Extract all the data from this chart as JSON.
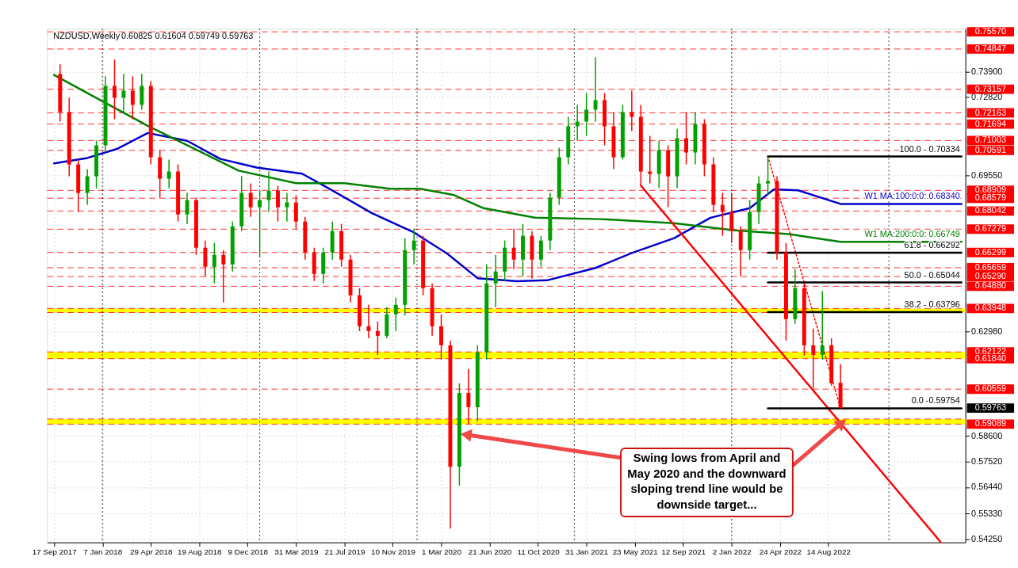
{
  "chart_data": {
    "type": "candlestick",
    "title": "NZDUSD,Weekly",
    "subtitle": "0.60825 0.61604 0.59749 0.59763",
    "x": [
      "2017-10-01",
      "2017-10-22",
      "2017-11-12",
      "2017-12-03",
      "2017-12-24",
      "2018-01-14",
      "2018-02-04",
      "2018-02-25",
      "2018-03-18",
      "2018-04-08",
      "2018-04-29",
      "2018-05-20",
      "2018-06-10",
      "2018-07-01",
      "2018-07-22",
      "2018-08-12",
      "2018-09-02",
      "2018-09-23",
      "2018-10-14",
      "2018-11-04",
      "2018-11-25",
      "2018-12-16",
      "2019-01-06",
      "2019-01-27",
      "2019-02-17",
      "2019-03-10",
      "2019-03-31",
      "2019-04-21",
      "2019-05-12",
      "2019-06-02",
      "2019-06-23",
      "2019-07-14",
      "2019-08-04",
      "2019-08-25",
      "2019-09-15",
      "2019-10-06",
      "2019-10-27",
      "2019-11-17",
      "2019-12-08",
      "2019-12-29",
      "2020-01-19",
      "2020-02-09",
      "2020-03-01",
      "2020-03-22",
      "2020-04-12",
      "2020-05-03",
      "2020-05-24",
      "2020-06-14",
      "2020-07-05",
      "2020-07-26",
      "2020-08-16",
      "2020-09-06",
      "2020-09-27",
      "2020-10-18",
      "2020-11-08",
      "2020-11-29",
      "2020-12-20",
      "2021-01-10",
      "2021-01-31",
      "2021-02-21",
      "2021-03-14",
      "2021-04-04",
      "2021-04-25",
      "2021-05-16",
      "2021-06-06",
      "2021-06-27",
      "2021-07-18",
      "2021-08-08",
      "2021-08-29",
      "2021-09-19",
      "2021-10-10",
      "2021-10-31",
      "2021-11-21",
      "2021-12-12",
      "2022-01-02",
      "2022-01-23",
      "2022-02-13",
      "2022-03-06",
      "2022-03-27",
      "2022-04-17",
      "2022-05-08",
      "2022-05-29",
      "2022-06-19",
      "2022-07-10",
      "2022-07-31",
      "2022-08-21",
      "2022-09-11"
    ],
    "ohlc": [
      [
        0.738,
        0.742,
        0.718,
        0.722
      ],
      [
        0.722,
        0.728,
        0.695,
        0.7
      ],
      [
        0.7,
        0.702,
        0.68,
        0.688
      ],
      [
        0.688,
        0.698,
        0.683,
        0.695
      ],
      [
        0.695,
        0.71,
        0.69,
        0.708
      ],
      [
        0.708,
        0.737,
        0.705,
        0.733
      ],
      [
        0.733,
        0.744,
        0.719,
        0.728
      ],
      [
        0.728,
        0.738,
        0.722,
        0.731
      ],
      [
        0.731,
        0.737,
        0.719,
        0.725
      ],
      [
        0.725,
        0.738,
        0.723,
        0.733
      ],
      [
        0.733,
        0.735,
        0.7,
        0.703
      ],
      [
        0.703,
        0.706,
        0.686,
        0.694
      ],
      [
        0.694,
        0.702,
        0.69,
        0.697
      ],
      [
        0.697,
        0.7,
        0.676,
        0.679
      ],
      [
        0.679,
        0.688,
        0.675,
        0.685
      ],
      [
        0.685,
        0.686,
        0.662,
        0.665
      ],
      [
        0.665,
        0.668,
        0.653,
        0.657
      ],
      [
        0.657,
        0.667,
        0.65,
        0.662
      ],
      [
        0.662,
        0.664,
        0.642,
        0.658
      ],
      [
        0.658,
        0.676,
        0.655,
        0.674
      ],
      [
        0.674,
        0.695,
        0.672,
        0.688
      ],
      [
        0.688,
        0.692,
        0.678,
        0.682
      ],
      [
        0.682,
        0.689,
        0.661,
        0.685
      ],
      [
        0.685,
        0.697,
        0.68,
        0.689
      ],
      [
        0.689,
        0.691,
        0.676,
        0.682
      ],
      [
        0.682,
        0.688,
        0.676,
        0.684
      ],
      [
        0.684,
        0.687,
        0.673,
        0.676
      ],
      [
        0.676,
        0.678,
        0.66,
        0.663
      ],
      [
        0.663,
        0.665,
        0.651,
        0.654
      ],
      [
        0.654,
        0.665,
        0.65,
        0.663
      ],
      [
        0.663,
        0.676,
        0.66,
        0.672
      ],
      [
        0.672,
        0.675,
        0.657,
        0.66
      ],
      [
        0.66,
        0.662,
        0.642,
        0.645
      ],
      [
        0.645,
        0.648,
        0.63,
        0.632
      ],
      [
        0.632,
        0.641,
        0.627,
        0.63
      ],
      [
        0.63,
        0.634,
        0.62,
        0.628
      ],
      [
        0.628,
        0.64,
        0.627,
        0.637
      ],
      [
        0.637,
        0.644,
        0.63,
        0.641
      ],
      [
        0.641,
        0.669,
        0.6365,
        0.664
      ],
      [
        0.664,
        0.673,
        0.658,
        0.668
      ],
      [
        0.668,
        0.67,
        0.645,
        0.648
      ],
      [
        0.648,
        0.65,
        0.628,
        0.632
      ],
      [
        0.632,
        0.637,
        0.618,
        0.624
      ],
      [
        0.624,
        0.626,
        0.547,
        0.573
      ],
      [
        0.573,
        0.608,
        0.565,
        0.604
      ],
      [
        0.604,
        0.614,
        0.591,
        0.598
      ],
      [
        0.598,
        0.624,
        0.592,
        0.621
      ],
      [
        0.621,
        0.658,
        0.618,
        0.65
      ],
      [
        0.65,
        0.662,
        0.64,
        0.655
      ],
      [
        0.655,
        0.668,
        0.651,
        0.665
      ],
      [
        0.665,
        0.673,
        0.656,
        0.66
      ],
      [
        0.66,
        0.675,
        0.653,
        0.67
      ],
      [
        0.67,
        0.672,
        0.652,
        0.66
      ],
      [
        0.66,
        0.67,
        0.657,
        0.668
      ],
      [
        0.668,
        0.688,
        0.664,
        0.686
      ],
      [
        0.686,
        0.707,
        0.683,
        0.703
      ],
      [
        0.703,
        0.72,
        0.7,
        0.716
      ],
      [
        0.716,
        0.725,
        0.71,
        0.718
      ],
      [
        0.718,
        0.73,
        0.712,
        0.723
      ],
      [
        0.723,
        0.745,
        0.718,
        0.727
      ],
      [
        0.727,
        0.73,
        0.708,
        0.716
      ],
      [
        0.716,
        0.722,
        0.698,
        0.703
      ],
      [
        0.703,
        0.725,
        0.702,
        0.722
      ],
      [
        0.722,
        0.731,
        0.714,
        0.72
      ],
      [
        0.72,
        0.725,
        0.691,
        0.697
      ],
      [
        0.697,
        0.712,
        0.692,
        0.696
      ],
      [
        0.696,
        0.71,
        0.69,
        0.706
      ],
      [
        0.706,
        0.708,
        0.682,
        0.695
      ],
      [
        0.695,
        0.715,
        0.69,
        0.711
      ],
      [
        0.711,
        0.722,
        0.7,
        0.705
      ],
      [
        0.705,
        0.722,
        0.7,
        0.717
      ],
      [
        0.717,
        0.719,
        0.695,
        0.7
      ],
      [
        0.7,
        0.703,
        0.68,
        0.683
      ],
      [
        0.683,
        0.688,
        0.67,
        0.68
      ],
      [
        0.68,
        0.688,
        0.667,
        0.672
      ],
      [
        0.672,
        0.674,
        0.653,
        0.664
      ],
      [
        0.664,
        0.685,
        0.66,
        0.68
      ],
      [
        0.68,
        0.695,
        0.675,
        0.692
      ],
      [
        0.692,
        0.7034,
        0.687,
        0.693
      ],
      [
        0.693,
        0.695,
        0.66,
        0.663
      ],
      [
        0.663,
        0.667,
        0.626,
        0.635
      ],
      [
        0.635,
        0.656,
        0.633,
        0.648
      ],
      [
        0.648,
        0.65,
        0.6197,
        0.624
      ],
      [
        0.624,
        0.631,
        0.606,
        0.62
      ],
      [
        0.62,
        0.6468,
        0.618,
        0.624
      ],
      [
        0.624,
        0.627,
        0.607,
        0.608
      ],
      [
        0.60825,
        0.61604,
        0.59749,
        0.59763
      ]
    ],
    "series": [
      {
        "type": "line",
        "name": "W1 MA:100:0:0: 0.68340",
        "color": "#0000cc",
        "x": [
          "2017-09-17",
          "2017-12-03",
          "2018-02-11",
          "2018-04-22",
          "2018-07-22",
          "2018-10-07",
          "2018-12-30",
          "2019-04-14",
          "2019-06-09",
          "2019-09-22",
          "2019-12-29",
          "2020-03-15",
          "2020-05-24",
          "2020-08-23",
          "2020-11-01",
          "2021-02-21",
          "2021-05-16",
          "2021-08-22",
          "2021-11-14",
          "2022-02-13",
          "2022-04-10",
          "2022-06-05",
          "2022-09-11",
          "2023-06-18"
        ],
        "values": [
          0.7004,
          0.7027,
          0.7066,
          0.7132,
          0.7099,
          0.7023,
          0.6987,
          0.6961,
          0.6905,
          0.6796,
          0.6714,
          0.6625,
          0.6522,
          0.6509,
          0.6513,
          0.6565,
          0.6628,
          0.669,
          0.6776,
          0.6816,
          0.6895,
          0.6891,
          0.6834,
          0.6834
        ]
      },
      {
        "type": "line",
        "name": "W1 MA:200:0:0: 0.66749",
        "color": "#008000",
        "x": [
          "2017-09-17",
          "2018-04-22",
          "2018-11-18",
          "2019-03-31",
          "2019-07-21",
          "2019-11-03",
          "2020-01-12",
          "2020-03-29",
          "2020-06-07",
          "2020-10-04",
          "2021-03-07",
          "2021-08-22",
          "2022-01-09",
          "2022-05-15",
          "2022-09-11",
          "2023-06-18"
        ],
        "values": [
          0.7376,
          0.7162,
          0.6974,
          0.6921,
          0.6921,
          0.6898,
          0.6898,
          0.6872,
          0.6816,
          0.6776,
          0.677,
          0.6753,
          0.6723,
          0.6707,
          0.66749,
          0.66749
        ]
      },
      {
        "type": "line",
        "color": "#ff0000",
        "x": [
          "2021-06-06",
          "2023-04-30"
        ],
        "values": [
          0.6911,
          0.5415
        ]
      },
      {
        "type": "line",
        "color": "#ff0000",
        "line_style": "dotted",
        "x": [
          "2022-03-27",
          "2022-09-11"
        ],
        "values": [
          0.70334,
          0.59754
        ]
      },
      {
        "type": "line",
        "name": "100.0 - 0.70334",
        "color": "#000000",
        "x": [
          "2022-03-27",
          "2023-06-18"
        ],
        "values": [
          0.70334,
          0.70334
        ]
      },
      {
        "type": "line",
        "name": "61.8 - 0.66292",
        "color": "#000000",
        "x": [
          "2022-03-27",
          "2023-06-18"
        ],
        "values": [
          0.66292,
          0.66292
        ]
      },
      {
        "type": "line",
        "name": "50.0 - 0.65044",
        "color": "#000000",
        "x": [
          "2022-03-27",
          "2023-06-18"
        ],
        "values": [
          0.65044,
          0.65044
        ]
      },
      {
        "type": "line",
        "name": "38.2 - 0.63796",
        "color": "#000000",
        "x": [
          "2022-03-27",
          "2023-06-18"
        ],
        "values": [
          0.63796,
          0.63796
        ]
      },
      {
        "type": "line",
        "name": "0.0 -0.59754",
        "color": "#000000",
        "x": [
          "2022-03-27",
          "2023-06-18"
        ],
        "values": [
          0.59754,
          0.59754
        ]
      }
    ],
    "xlim": [
      "2017-09-10",
      "2023-06-18"
    ],
    "xticks": [
      {
        "value": "2017-09-17",
        "label": "17 Sep 2017"
      },
      {
        "value": "2018-01-07",
        "label": "7 Jan 2018"
      },
      {
        "value": "2018-04-29",
        "label": "29 Apr 2018"
      },
      {
        "value": "2018-08-19",
        "label": "19 Aug 2018"
      },
      {
        "value": "2018-12-09",
        "label": "9 Dec 2018"
      },
      {
        "value": "2019-03-31",
        "label": "31 Mar 2019"
      },
      {
        "value": "2019-07-21",
        "label": "21 Jul 2019"
      },
      {
        "value": "2019-11-10",
        "label": "10 Nov 2019"
      },
      {
        "value": "2020-03-01",
        "label": "1 Mar 2020"
      },
      {
        "value": "2020-06-21",
        "label": "21 Jun 2020"
      },
      {
        "value": "2020-10-11",
        "label": "11 Oct 2020"
      },
      {
        "value": "2021-01-31",
        "label": "31 Jan 2021"
      },
      {
        "value": "2021-05-23",
        "label": "23 May 2021"
      },
      {
        "value": "2021-09-12",
        "label": "12 Sep 2021"
      },
      {
        "value": "2022-01-02",
        "label": "2 Jan 2022"
      },
      {
        "value": "2022-04-24",
        "label": "24 Apr 2022"
      },
      {
        "value": "2022-08-14",
        "label": "14 Aug 2022"
      }
    ],
    "ylim": [
      0.5412,
      0.757
    ],
    "yticks": [
      {
        "value": 0.739,
        "label": "0.73900"
      },
      {
        "value": 0.7282,
        "label": "0.72820"
      },
      {
        "value": 0.6955,
        "label": "0.69550"
      },
      {
        "value": 0.6298,
        "label": "0.62980"
      },
      {
        "value": 0.586,
        "label": "0.58600"
      },
      {
        "value": 0.5752,
        "label": "0.57520"
      },
      {
        "value": 0.5644,
        "label": "0.56440"
      },
      {
        "value": 0.5533,
        "label": "0.55330"
      },
      {
        "value": 0.5425,
        "label": "0.54250"
      }
    ],
    "grid": true,
    "bands": [
      {
        "axis": "y",
        "from": 0.63778,
        "to": 0.63948,
        "color": "#ffff00"
      },
      {
        "axis": "y",
        "from": 0.6184,
        "to": 0.62122,
        "color": "#ffff00"
      },
      {
        "axis": "y",
        "from": 0.59089,
        "to": 0.59303,
        "color": "#ffff00"
      }
    ],
    "ref_lines": [
      {
        "axis": "y",
        "value": 0.7557,
        "label": "0.75570",
        "color": "#ff0000",
        "line_style": "dashed"
      },
      {
        "axis": "y",
        "value": 0.74847,
        "label": "0.74847",
        "color": "#ff0000",
        "line_style": "dashed"
      },
      {
        "axis": "y",
        "value": 0.73157,
        "label": "0.73157",
        "color": "#ff0000",
        "line_style": "dashed"
      },
      {
        "axis": "y",
        "value": 0.72163,
        "label": "0.72163",
        "color": "#ff0000",
        "line_style": "dashed"
      },
      {
        "axis": "y",
        "value": 0.71694,
        "label": "0.71694",
        "color": "#ff0000",
        "line_style": "dashed"
      },
      {
        "axis": "y",
        "value": 0.71003,
        "label": "0.71003",
        "color": "#ff0000",
        "line_style": "dashed"
      },
      {
        "axis": "y",
        "value": 0.70591,
        "label": "0.70591",
        "color": "#ff0000",
        "line_style": "dashed"
      },
      {
        "axis": "y",
        "value": 0.68909,
        "label": "0.68909",
        "color": "#ff0000",
        "line_style": "dashed"
      },
      {
        "axis": "y",
        "value": 0.68579,
        "label": "0.68579",
        "color": "#ff0000",
        "line_style": "dashed"
      },
      {
        "axis": "y",
        "value": 0.68042,
        "label": "0.68042",
        "color": "#ff0000",
        "line_style": "dashed"
      },
      {
        "axis": "y",
        "value": 0.67279,
        "label": "0.67279",
        "color": "#ff0000",
        "line_style": "dashed"
      },
      {
        "axis": "y",
        "value": 0.66299,
        "label": "0.66299",
        "color": "#ff0000",
        "line_style": "dashed"
      },
      {
        "axis": "y",
        "value": 0.65659,
        "label": "0.65659",
        "color": "#ff0000",
        "line_style": "dashed"
      },
      {
        "axis": "y",
        "value": 0.6529,
        "label": "0.65290",
        "color": "#ff0000",
        "line_style": "dashed"
      },
      {
        "axis": "y",
        "value": 0.6488,
        "label": "0.64880",
        "color": "#ff0000",
        "line_style": "dashed"
      },
      {
        "axis": "y",
        "value": 0.63948,
        "label": "0.63948",
        "color": "#ff0000",
        "line_style": "dashed"
      },
      {
        "axis": "y",
        "value": 0.63778,
        "color": "#ff0000",
        "line_style": "dashed"
      },
      {
        "axis": "y",
        "value": 0.62122,
        "label": "0.62122",
        "color": "#ff0000",
        "line_style": "dashed"
      },
      {
        "axis": "y",
        "value": 0.6184,
        "label": "0.61840",
        "color": "#ff0000",
        "line_style": "dashed"
      },
      {
        "axis": "y",
        "value": 0.60559,
        "label": "0.60559",
        "color": "#ff0000",
        "line_style": "dashed"
      },
      {
        "axis": "y",
        "value": 0.59303,
        "color": "#ff0000",
        "line_style": "dashed"
      },
      {
        "axis": "y",
        "value": 0.59089,
        "label": "0.59089",
        "color": "#ff0000",
        "line_style": "dashed"
      },
      {
        "axis": "x",
        "value": "2018-01-07",
        "color": "#000000",
        "line_style": "dotted"
      },
      {
        "axis": "x",
        "value": "2019-01-06",
        "color": "#000000",
        "line_style": "dotted"
      },
      {
        "axis": "x",
        "value": "2020-01-05",
        "color": "#000000",
        "line_style": "dotted"
      },
      {
        "axis": "x",
        "value": "2021-01-03",
        "color": "#000000",
        "line_style": "dotted"
      },
      {
        "axis": "x",
        "value": "2022-01-02",
        "color": "#000000",
        "line_style": "dotted"
      },
      {
        "axis": "x",
        "value": "2023-01-01",
        "color": "#000000",
        "line_style": "dotted"
      }
    ],
    "annotations": [
      "0.59763",
      {
        "text": "Swing lows from April and\nMay 2020 and the downward\nsloping trend line would be\ndownside target...",
        "x": "2022-09-11",
        "y": 0.5909
      }
    ]
  }
}
